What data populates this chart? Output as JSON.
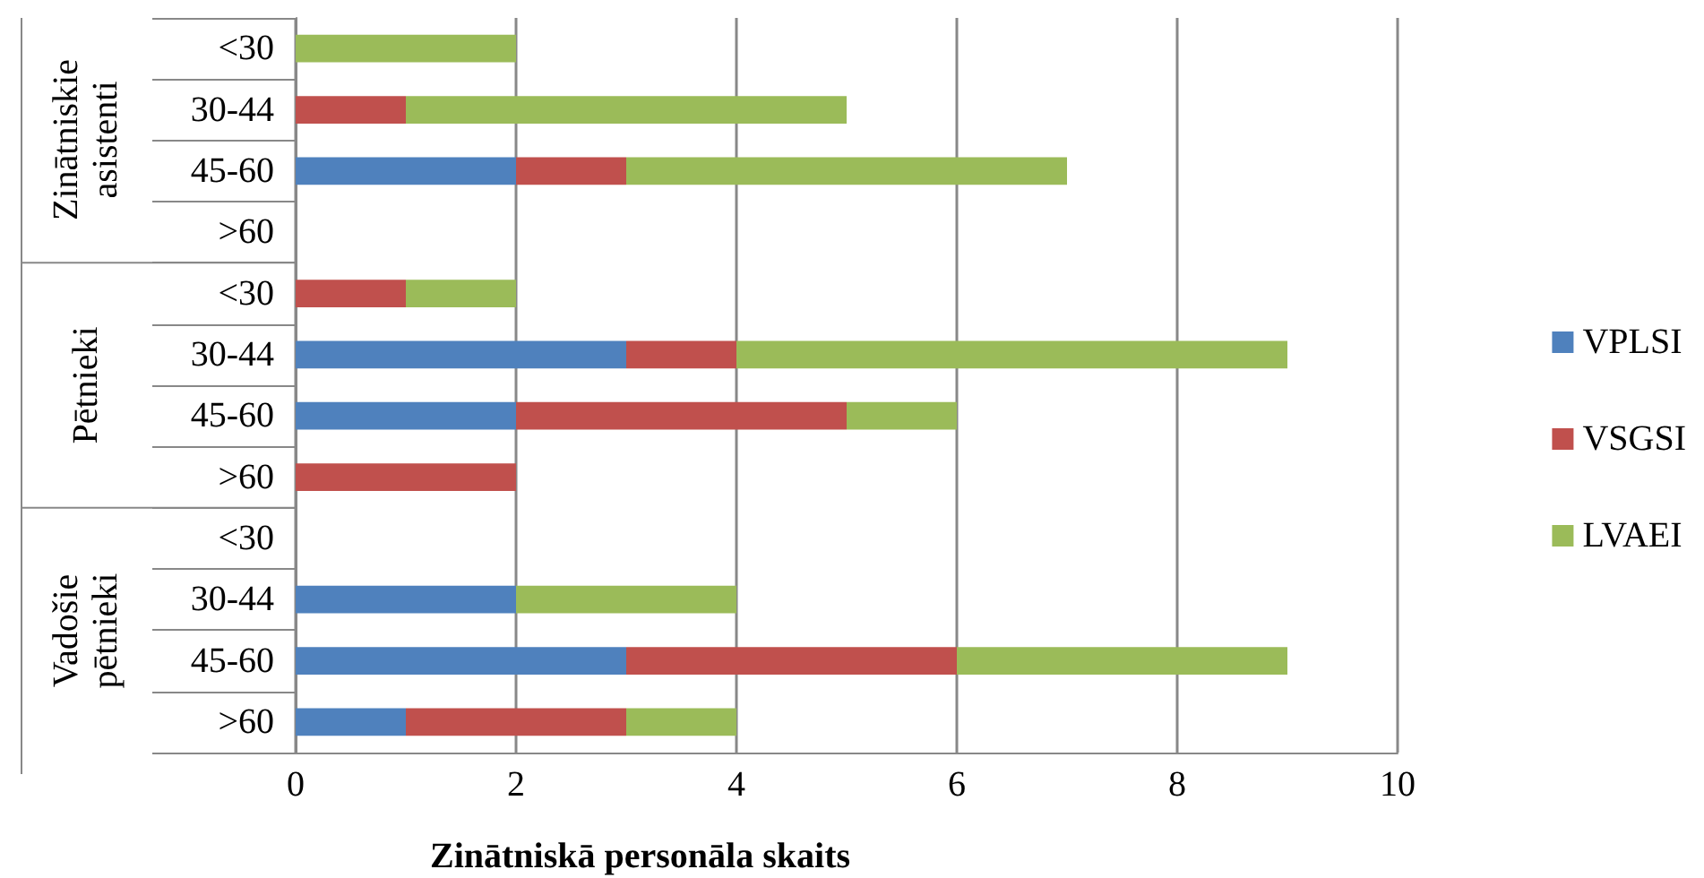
{
  "chart_data": {
    "type": "bar",
    "orientation": "horizontal",
    "stacked": true,
    "xlabel": "Zinātniskā personāla skaits",
    "categories": [
      "<30",
      "30-44",
      "45-60",
      ">60",
      "<30",
      "30-44",
      "45-60",
      ">60",
      "<30",
      "30-44",
      "45-60",
      ">60"
    ],
    "annotations": [
      "Zinātniskie asistenti",
      "Pētnieki",
      "Vadošie pētnieki"
    ],
    "series": [
      {
        "name": "VPLSI",
        "color": "#4f81bd",
        "values": [
          0,
          0,
          2,
          0,
          0,
          3,
          2,
          0,
          0,
          2,
          3,
          1
        ]
      },
      {
        "name": "VSGSI",
        "color": "#c0504d",
        "values": [
          0,
          1,
          1,
          0,
          1,
          1,
          3,
          2,
          0,
          0,
          3,
          2
        ]
      },
      {
        "name": "LVAEI",
        "color": "#9bbb59",
        "values": [
          2,
          4,
          4,
          0,
          1,
          5,
          1,
          0,
          0,
          2,
          3,
          1
        ]
      }
    ],
    "xlim": [
      0,
      10
    ],
    "xticks": [
      0,
      2,
      4,
      6,
      8,
      10
    ],
    "grid": "x",
    "legend": "right"
  }
}
